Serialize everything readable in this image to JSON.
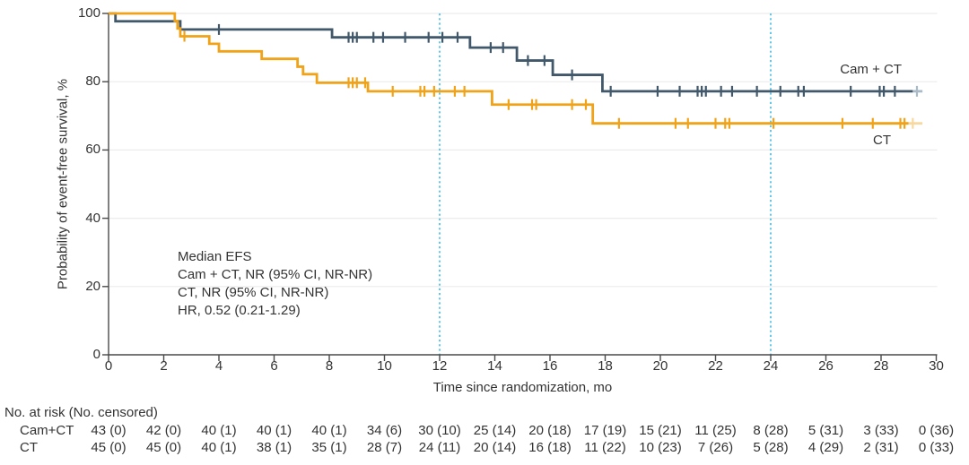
{
  "chart_data": {
    "type": "line",
    "subtype": "kaplan-meier-step-curve",
    "title": "",
    "xlabel": "Time since randomization, mo",
    "ylabel": "Probability of event-free survival, %",
    "xlim": [
      0,
      30
    ],
    "ylim": [
      0,
      100
    ],
    "xticks": [
      0,
      2,
      4,
      6,
      8,
      10,
      12,
      14,
      16,
      18,
      20,
      22,
      24,
      26,
      28,
      30
    ],
    "yticks": [
      0,
      20,
      40,
      60,
      80,
      100
    ],
    "grid": "horizontal-light",
    "legend_position": "on-plot-right",
    "reference_lines_x": [
      12,
      24
    ],
    "colors": {
      "cam_ct": "#41586B",
      "cam_ct_tail": "#A9BBC6",
      "ct": "#F0A318",
      "ct_tail": "#F7D9A0",
      "reference_line": "#4FC3EA",
      "gridline": "#ECECEC",
      "axis": "#4A4A4A",
      "text": "#333333"
    },
    "annotation": [
      "Median EFS",
      "Cam + CT, NR (95% CI, NR-NR)",
      "CT, NR (95% CI, NR-NR)",
      "HR, 0.52 (0.21-1.29)"
    ],
    "series": [
      {
        "id": "cam-ct",
        "name": "Cam + CT",
        "color": "#41586B",
        "tail_color": "#A9BBC6",
        "steps": [
          [
            0,
            100
          ],
          [
            0.25,
            97.7
          ],
          [
            2.6,
            95.3
          ],
          [
            8.1,
            93.0
          ],
          [
            13.1,
            90.0
          ],
          [
            14.8,
            86.2
          ],
          [
            16.1,
            82.0
          ],
          [
            17.9,
            77.2
          ]
        ],
        "t_end": 29.15,
        "tail": {
          "t_start": 29.15,
          "t_end": 29.5,
          "censor_t": 29.3
        },
        "censors": [
          [
            4.0,
            95.3
          ],
          [
            8.7,
            93.0
          ],
          [
            8.85,
            93.0
          ],
          [
            9.0,
            93.0
          ],
          [
            9.6,
            93.0
          ],
          [
            9.95,
            93.0
          ],
          [
            10.75,
            93.0
          ],
          [
            11.6,
            93.0
          ],
          [
            12.1,
            93.0
          ],
          [
            12.65,
            93.0
          ],
          [
            13.85,
            90.0
          ],
          [
            14.3,
            90.0
          ],
          [
            15.2,
            86.2
          ],
          [
            15.8,
            86.2
          ],
          [
            16.8,
            82.0
          ],
          [
            18.2,
            77.2
          ],
          [
            19.9,
            77.2
          ],
          [
            20.7,
            77.2
          ],
          [
            21.35,
            77.2
          ],
          [
            21.5,
            77.2
          ],
          [
            21.65,
            77.2
          ],
          [
            22.2,
            77.2
          ],
          [
            22.6,
            77.2
          ],
          [
            23.5,
            77.2
          ],
          [
            24.35,
            77.2
          ],
          [
            25.0,
            77.2
          ],
          [
            25.2,
            77.2
          ],
          [
            26.9,
            77.2
          ],
          [
            27.95,
            77.2
          ],
          [
            28.1,
            77.2
          ],
          [
            28.5,
            77.2
          ]
        ]
      },
      {
        "id": "ct",
        "name": "CT",
        "color": "#F0A318",
        "tail_color": "#F7D9A0",
        "steps": [
          [
            0,
            100
          ],
          [
            2.4,
            97.8
          ],
          [
            2.5,
            95.6
          ],
          [
            2.6,
            93.3
          ],
          [
            3.65,
            91.1
          ],
          [
            4.0,
            88.9
          ],
          [
            5.55,
            86.7
          ],
          [
            6.85,
            84.4
          ],
          [
            7.05,
            82.2
          ],
          [
            7.55,
            79.7
          ],
          [
            9.4,
            77.2
          ],
          [
            13.9,
            73.3
          ],
          [
            17.55,
            67.8
          ]
        ],
        "t_end": 29.0,
        "tail": {
          "t_start": 29.0,
          "t_end": 29.5,
          "censor_t": 29.15
        },
        "censors": [
          [
            2.75,
            93.3
          ],
          [
            8.7,
            79.7
          ],
          [
            8.85,
            79.7
          ],
          [
            9.0,
            79.7
          ],
          [
            9.3,
            79.7
          ],
          [
            10.3,
            77.2
          ],
          [
            11.3,
            77.2
          ],
          [
            11.45,
            77.2
          ],
          [
            11.8,
            77.2
          ],
          [
            12.55,
            77.2
          ],
          [
            12.9,
            77.2
          ],
          [
            14.5,
            73.3
          ],
          [
            15.35,
            73.3
          ],
          [
            15.5,
            73.3
          ],
          [
            16.8,
            73.3
          ],
          [
            17.3,
            73.3
          ],
          [
            18.5,
            67.8
          ],
          [
            20.55,
            67.8
          ],
          [
            21.0,
            67.8
          ],
          [
            22.0,
            67.8
          ],
          [
            22.35,
            67.8
          ],
          [
            22.5,
            67.8
          ],
          [
            24.1,
            67.8
          ],
          [
            26.6,
            67.8
          ],
          [
            27.7,
            67.8
          ],
          [
            28.7,
            67.8
          ],
          [
            28.85,
            67.8
          ]
        ]
      }
    ],
    "risk_table": {
      "header": "No. at risk (No. censored)",
      "times": [
        0,
        2,
        4,
        6,
        8,
        10,
        12,
        14,
        16,
        18,
        20,
        22,
        24,
        26,
        28,
        30
      ],
      "rows": [
        {
          "label": "Cam+CT",
          "values": [
            "43 (0)",
            "42 (0)",
            "40 (1)",
            "40 (1)",
            "40 (1)",
            "34 (6)",
            "30 (10)",
            "25 (14)",
            "20 (18)",
            "17 (19)",
            "15 (21)",
            "11 (25)",
            "8 (28)",
            "5 (31)",
            "3 (33)",
            "0 (36)"
          ]
        },
        {
          "label": "CT",
          "values": [
            "45 (0)",
            "45 (0)",
            "40 (1)",
            "38 (1)",
            "35 (1)",
            "28 (7)",
            "24 (11)",
            "20 (14)",
            "16 (18)",
            "11 (22)",
            "10 (23)",
            "7 (26)",
            "5 (28)",
            "4 (29)",
            "2 (31)",
            "0 (33)"
          ]
        }
      ]
    }
  }
}
